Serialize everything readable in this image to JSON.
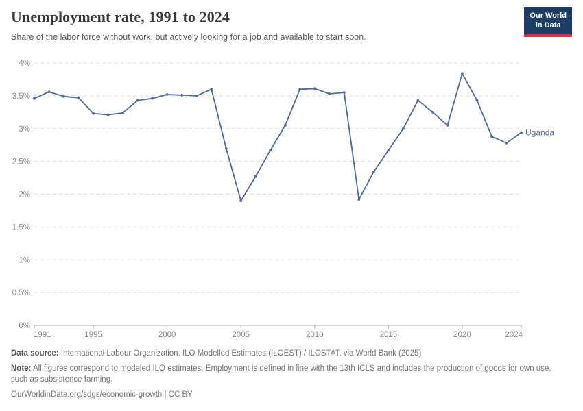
{
  "header": {
    "title": "Unemployment rate, 1991 to 2024",
    "subtitle": "Share of the labor force without work, but actively looking for a job and available to start soon."
  },
  "logo": {
    "line1": "Our World",
    "line2": "in Data",
    "bg_color": "#1d3d63",
    "accent_color": "#d03440"
  },
  "chart_data": {
    "type": "line",
    "title": "Unemployment rate, 1991 to 2024",
    "x": [
      1991,
      1992,
      1993,
      1994,
      1995,
      1996,
      1997,
      1998,
      1999,
      2000,
      2001,
      2002,
      2003,
      2004,
      2005,
      2006,
      2007,
      2008,
      2009,
      2010,
      2011,
      2012,
      2013,
      2014,
      2015,
      2016,
      2017,
      2018,
      2019,
      2020,
      2021,
      2022,
      2023,
      2024
    ],
    "series": [
      {
        "name": "Uganda",
        "color": "#4c6a9c",
        "values": [
          3.46,
          3.56,
          3.49,
          3.47,
          3.23,
          3.21,
          3.24,
          3.43,
          3.46,
          3.52,
          3.51,
          3.5,
          3.6,
          2.7,
          1.9,
          2.27,
          2.67,
          3.05,
          3.6,
          3.61,
          3.53,
          3.55,
          1.92,
          2.34,
          2.67,
          3.0,
          3.43,
          3.25,
          3.05,
          3.84,
          3.43,
          2.88,
          2.78,
          2.94
        ]
      }
    ],
    "unit": "%",
    "ylim": [
      0,
      4
    ],
    "yticks": {
      "values": [
        0,
        0.5,
        1,
        1.5,
        2,
        2.5,
        3,
        3.5,
        4
      ],
      "labels": [
        "0%",
        "0.5%",
        "1%",
        "1.5%",
        "2%",
        "2.5%",
        "3%",
        "3.5%",
        "4%"
      ]
    },
    "xticks": [
      1991,
      1995,
      2000,
      2005,
      2010,
      2015,
      2020,
      2024
    ],
    "grid": true,
    "legend_position": "end-of-line-label",
    "end_label": "Uganda"
  },
  "colors": {
    "line": "#4c6a9c",
    "gridline": "#dcdcdc",
    "axis": "#a3a3a3",
    "tick_text": "#8a8a8a"
  },
  "footer": {
    "data_source_label": "Data source:",
    "data_source": "International Labour Organization, ILO Modelled Estimates (ILOEST) / ILOSTAT, via World Bank (2025)",
    "note_label": "Note:",
    "note": "All figures correspond to modeled ILO estimates. Employment is defined in line with the 13th ICLS and includes the production of goods for own use, such as subsistence farming.",
    "citation": "OurWorldinData.org/sdgs/economic-growth | CC BY"
  }
}
